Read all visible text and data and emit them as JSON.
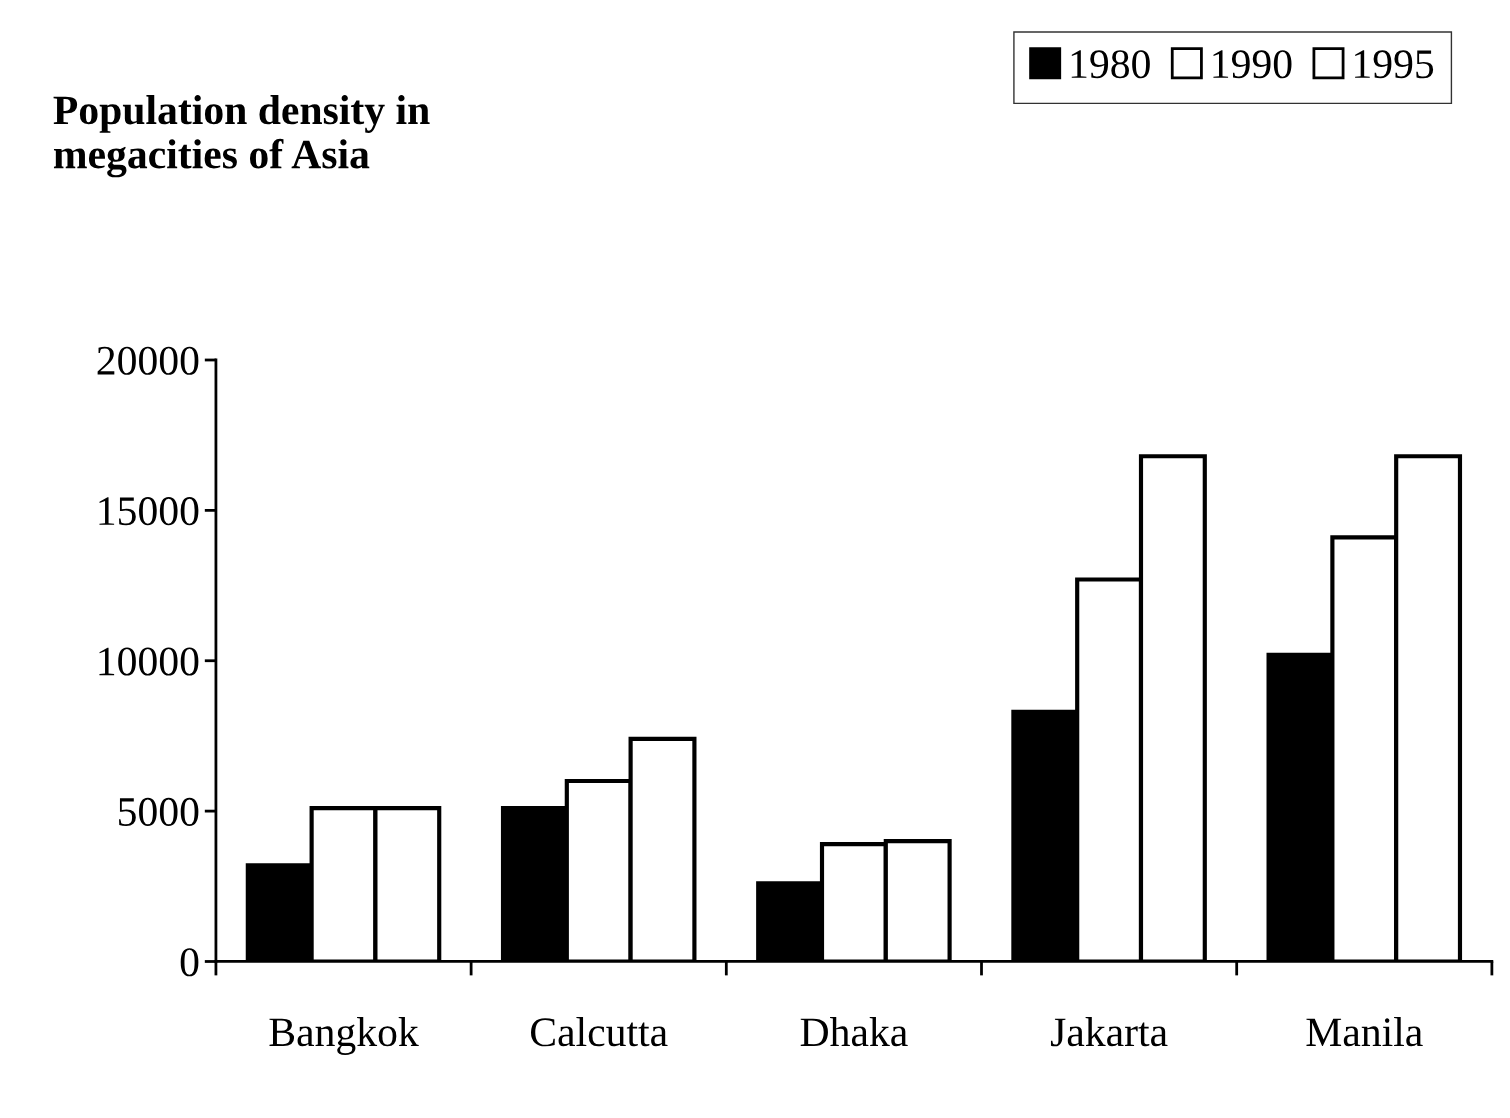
{
  "chart_data": {
    "type": "bar",
    "title": "Population density in\nmegacities of Asia",
    "categories": [
      "Bangkok",
      "Calcutta",
      "Dhaka",
      "Jakarta",
      "Manila"
    ],
    "series": [
      {
        "name": "1980",
        "color": "#000000",
        "values": [
          3200,
          5100,
          2600,
          8300,
          10200
        ]
      },
      {
        "name": "1990",
        "color": "#ffffff",
        "values": [
          5100,
          6000,
          3900,
          12700,
          14100
        ]
      },
      {
        "name": "1995",
        "color": "#ffffff",
        "values": [
          5100,
          7400,
          4000,
          16800,
          16800
        ]
      }
    ],
    "ylim": [
      0,
      20000
    ],
    "yticks": [
      0,
      5000,
      10000,
      15000,
      20000
    ],
    "grid": false,
    "legend": "top right"
  }
}
